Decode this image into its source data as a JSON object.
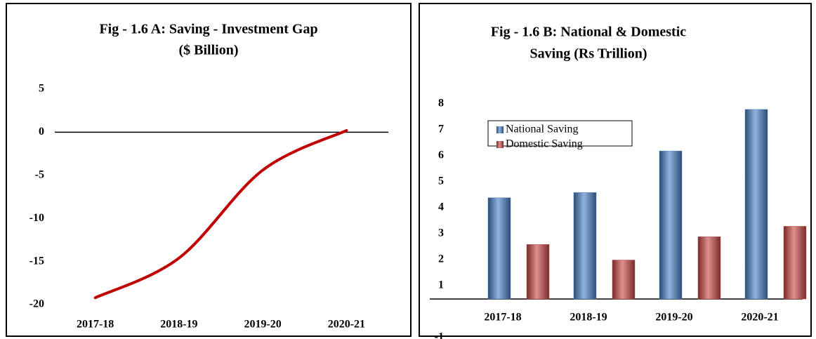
{
  "chart_data": [
    {
      "type": "line",
      "title": [
        "Fig - 1.6 A: Saving - Investment Gap",
        "($ Billion)"
      ],
      "categories": [
        "2017-18",
        "2018-19",
        "2019-20",
        "2020-21"
      ],
      "series": [
        {
          "name": "Saving - Investment Gap",
          "color": "#c00000",
          "values": [
            -19.2,
            -14.6,
            -4.4,
            0.2
          ]
        }
      ],
      "ylim": [
        -20,
        5
      ],
      "yticks": [
        5,
        0,
        -5,
        -10,
        -15,
        -20
      ]
    },
    {
      "type": "bar",
      "title": [
        "Fig - 1.6 B: National & Domestic",
        "Saving (Rs Trillion)"
      ],
      "categories": [
        "2017-18",
        "2018-19",
        "2019-20",
        "2020-21"
      ],
      "series": [
        {
          "name": "National Saving",
          "color": "#4f81bd",
          "values": [
            3.9,
            4.1,
            5.7,
            7.3
          ]
        },
        {
          "name": "Domestic Saving",
          "color": "#c0504d",
          "values": [
            2.1,
            1.5,
            2.4,
            2.8
          ]
        }
      ],
      "ylim": [
        -1,
        8
      ],
      "yticks": [
        8,
        7,
        6,
        5,
        4,
        3,
        2,
        1,
        -1
      ],
      "legend": "top-left"
    }
  ]
}
